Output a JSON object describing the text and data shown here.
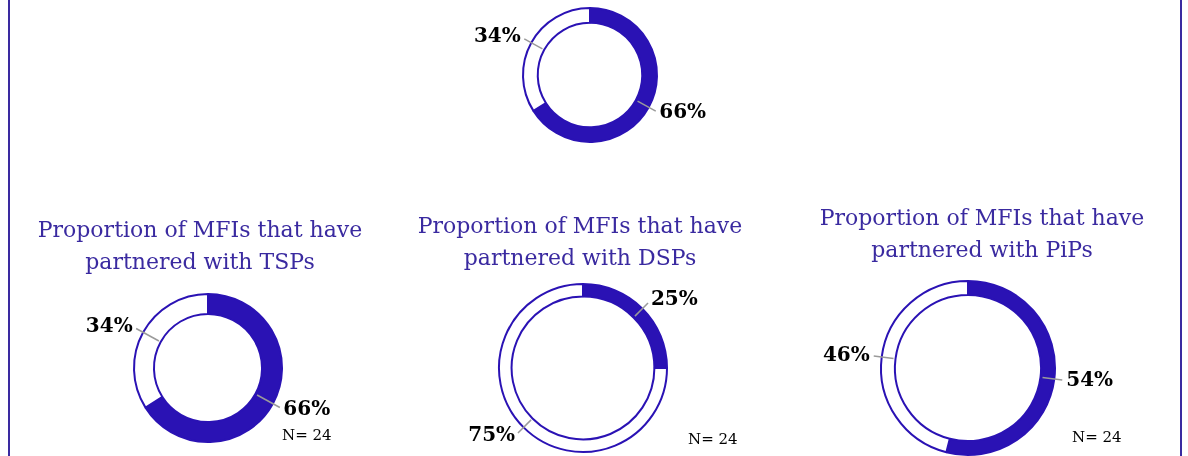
{
  "chart_data": [
    {
      "type": "donut",
      "categories": [
        null,
        null
      ],
      "values": [
        66,
        34
      ],
      "value_labels": [
        "66%",
        "34%"
      ],
      "colors": [
        "#2a12b4",
        "#ffffff"
      ],
      "legend": false
    },
    {
      "type": "donut",
      "title": "Proportion of MFIs that have partnered with TSPs",
      "categories": [
        null,
        null
      ],
      "values": [
        66,
        34
      ],
      "value_labels": [
        "66%",
        "34%"
      ],
      "colors": [
        "#2a12b4",
        "#ffffff"
      ],
      "legend": false,
      "annotations": [
        "N= 24"
      ]
    },
    {
      "type": "donut",
      "title": "Proportion of MFIs that have partnered with DSPs",
      "categories": [
        null,
        null
      ],
      "values": [
        25,
        75
      ],
      "value_labels": [
        "25%",
        "75%"
      ],
      "colors": [
        "#2a12b4",
        "#ffffff"
      ],
      "legend": false,
      "annotations": [
        "N= 24"
      ]
    },
    {
      "type": "donut",
      "title": "Proportion of MFIs that have partnered with PiPs",
      "categories": [
        null,
        null
      ],
      "values": [
        54,
        46
      ],
      "value_labels": [
        "54%",
        "46%"
      ],
      "colors": [
        "#2a12b4",
        "#ffffff"
      ],
      "legend": false,
      "annotations": [
        "N= 24"
      ]
    }
  ]
}
